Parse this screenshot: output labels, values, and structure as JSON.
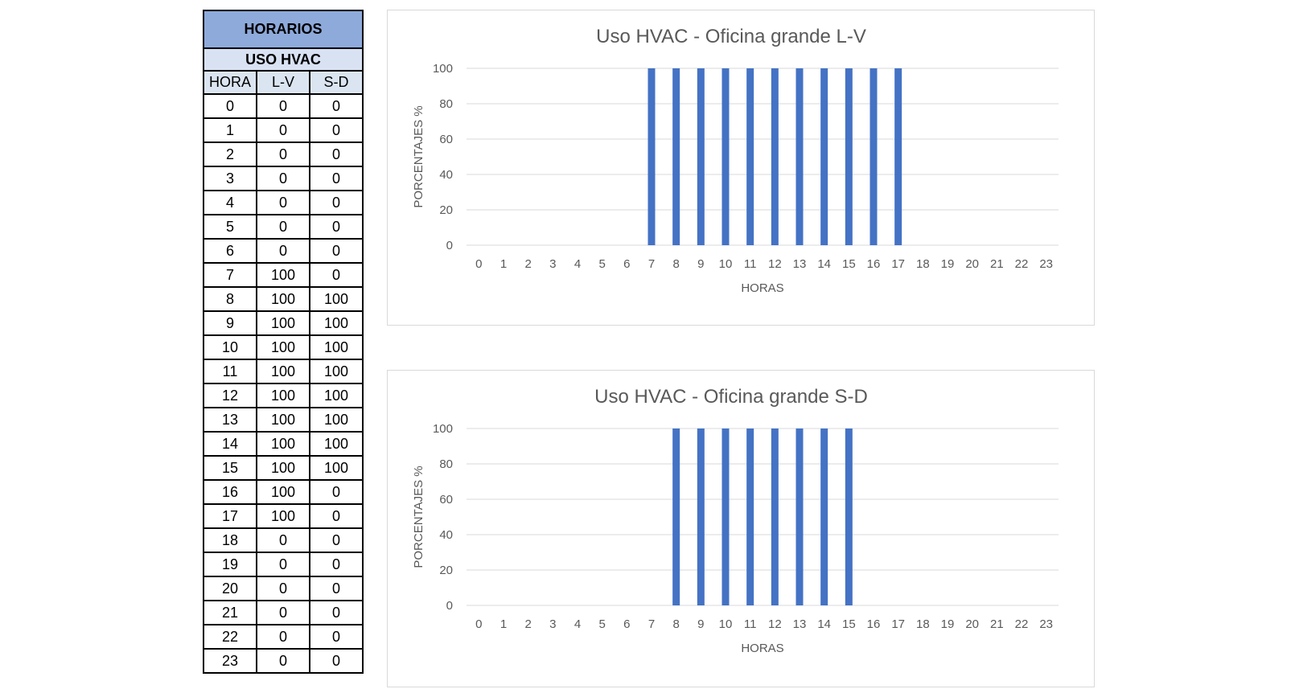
{
  "table": {
    "title": "HORARIOS",
    "subtitle": "USO HVAC",
    "headers": [
      "HORA",
      "L-V",
      "S-D"
    ],
    "rows": [
      [
        "0",
        "0",
        "0"
      ],
      [
        "1",
        "0",
        "0"
      ],
      [
        "2",
        "0",
        "0"
      ],
      [
        "3",
        "0",
        "0"
      ],
      [
        "4",
        "0",
        "0"
      ],
      [
        "5",
        "0",
        "0"
      ],
      [
        "6",
        "0",
        "0"
      ],
      [
        "7",
        "100",
        "0"
      ],
      [
        "8",
        "100",
        "100"
      ],
      [
        "9",
        "100",
        "100"
      ],
      [
        "10",
        "100",
        "100"
      ],
      [
        "11",
        "100",
        "100"
      ],
      [
        "12",
        "100",
        "100"
      ],
      [
        "13",
        "100",
        "100"
      ],
      [
        "14",
        "100",
        "100"
      ],
      [
        "15",
        "100",
        "100"
      ],
      [
        "16",
        "100",
        "0"
      ],
      [
        "17",
        "100",
        "0"
      ],
      [
        "18",
        "0",
        "0"
      ],
      [
        "19",
        "0",
        "0"
      ],
      [
        "20",
        "0",
        "0"
      ],
      [
        "21",
        "0",
        "0"
      ],
      [
        "22",
        "0",
        "0"
      ],
      [
        "23",
        "0",
        "0"
      ]
    ]
  },
  "chart_data": [
    {
      "type": "bar",
      "title": "Uso HVAC - Oficina grande L-V",
      "xlabel": "HORAS",
      "ylabel": "PORCENTAJES %",
      "categories": [
        "0",
        "1",
        "2",
        "3",
        "4",
        "5",
        "6",
        "7",
        "8",
        "9",
        "10",
        "11",
        "12",
        "13",
        "14",
        "15",
        "16",
        "17",
        "18",
        "19",
        "20",
        "21",
        "22",
        "23"
      ],
      "values": [
        0,
        0,
        0,
        0,
        0,
        0,
        0,
        100,
        100,
        100,
        100,
        100,
        100,
        100,
        100,
        100,
        100,
        100,
        0,
        0,
        0,
        0,
        0,
        0
      ],
      "ylim": [
        0,
        100
      ],
      "yticks": [
        0,
        20,
        40,
        60,
        80,
        100
      ],
      "grid": true,
      "bar_color": "#4472c4"
    },
    {
      "type": "bar",
      "title": "Uso HVAC - Oficina grande S-D",
      "xlabel": "HORAS",
      "ylabel": "PORCENTAJES %",
      "categories": [
        "0",
        "1",
        "2",
        "3",
        "4",
        "5",
        "6",
        "7",
        "8",
        "9",
        "10",
        "11",
        "12",
        "13",
        "14",
        "15",
        "16",
        "17",
        "18",
        "19",
        "20",
        "21",
        "22",
        "23"
      ],
      "values": [
        0,
        0,
        0,
        0,
        0,
        0,
        0,
        0,
        100,
        100,
        100,
        100,
        100,
        100,
        100,
        100,
        0,
        0,
        0,
        0,
        0,
        0,
        0,
        0
      ],
      "ylim": [
        0,
        100
      ],
      "yticks": [
        0,
        20,
        40,
        60,
        80,
        100
      ],
      "grid": true,
      "bar_color": "#4472c4"
    }
  ]
}
